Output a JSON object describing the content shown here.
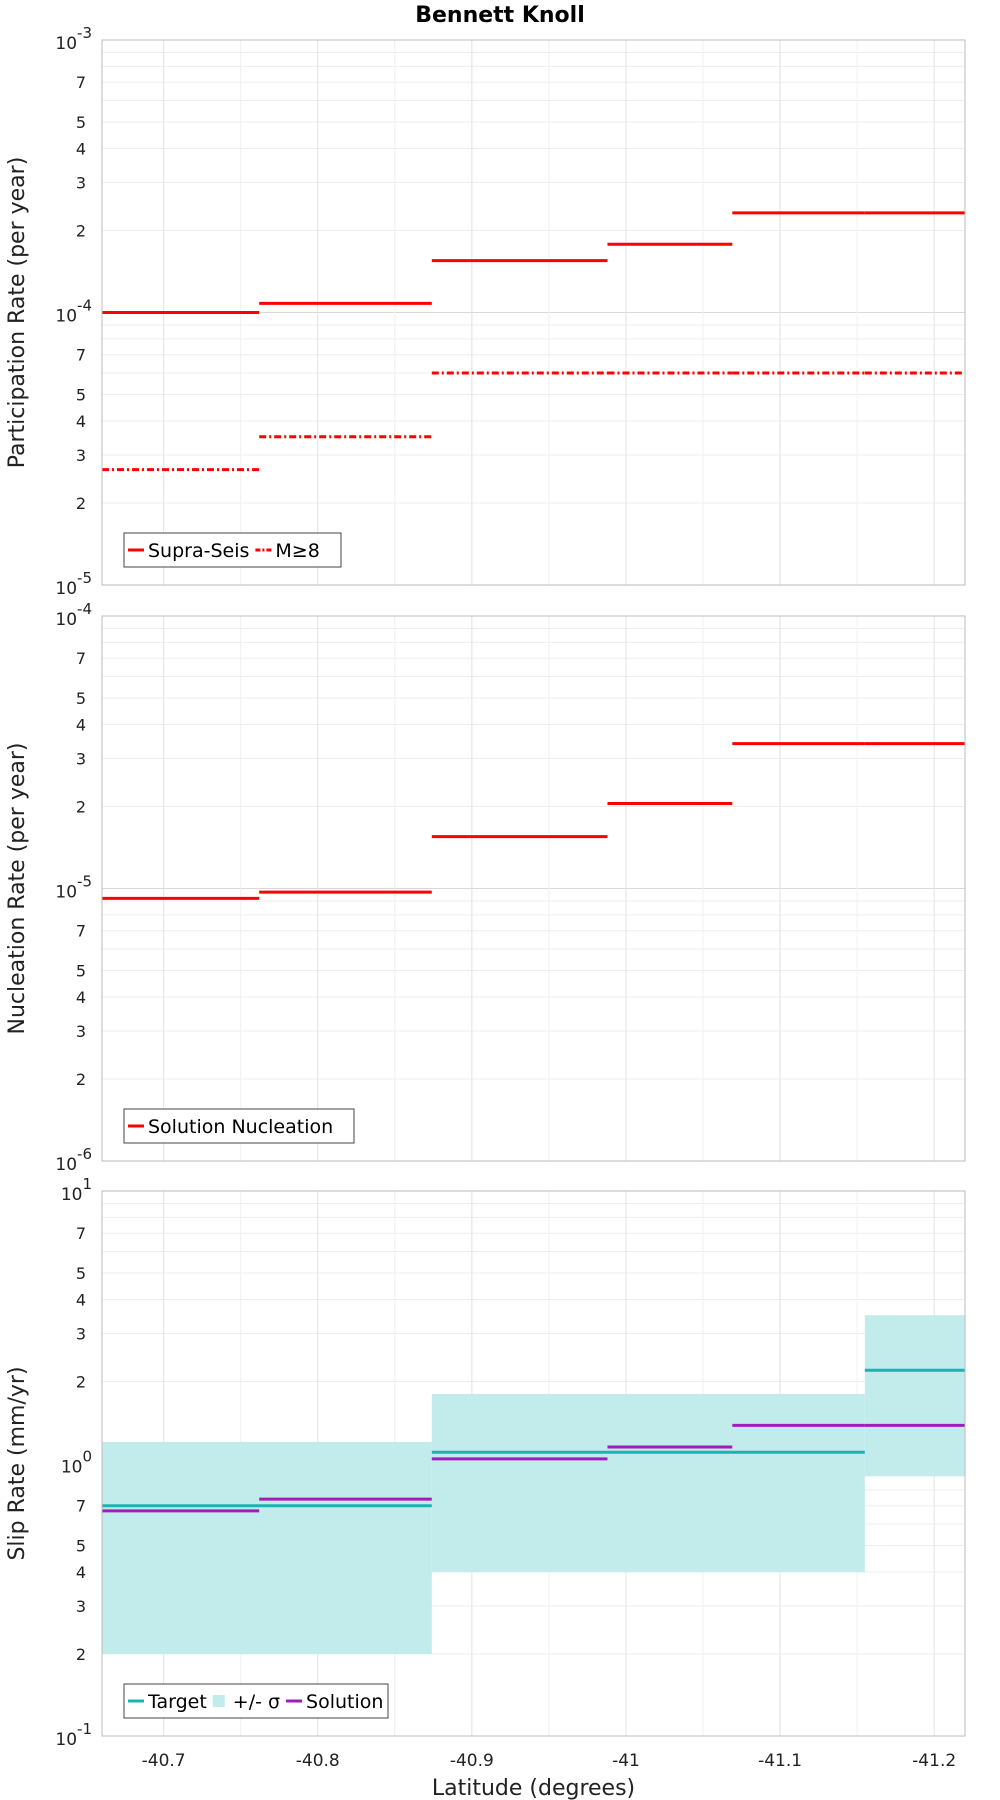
{
  "chart_data": [
    {
      "type": "line",
      "title": "Bennett Knoll",
      "ylabel": "Participation Rate (per year)",
      "xlabel": "",
      "xlim": [
        -40.66,
        -41.22
      ],
      "ylim": [
        1e-05,
        0.001
      ],
      "yscale": "log",
      "ytick_major": [
        {
          "base": "10",
          "exp": "-5"
        },
        {
          "base": "10",
          "exp": "-4"
        },
        {
          "base": "10",
          "exp": "-3"
        }
      ],
      "ytick_minor": [
        "2",
        "3",
        "4",
        "5",
        "7"
      ],
      "grid": true,
      "legend_position": "bottom-left",
      "series": [
        {
          "name": "Supra-Seis",
          "color": "#ff0000",
          "style": "solid",
          "segments": [
            {
              "x0": -40.66,
              "x1": -40.762,
              "y": 0.0001
            },
            {
              "x0": -40.762,
              "x1": -40.874,
              "y": 0.000108
            },
            {
              "x0": -40.874,
              "x1": -40.988,
              "y": 0.000155
            },
            {
              "x0": -40.988,
              "x1": -41.069,
              "y": 0.000178
            },
            {
              "x0": -41.069,
              "x1": -41.155,
              "y": 0.000232
            },
            {
              "x0": -41.155,
              "x1": -41.22,
              "y": 0.000232
            }
          ]
        },
        {
          "name": "M≥8",
          "color": "#ff0000",
          "style": "dashdot",
          "segments": [
            {
              "x0": -40.66,
              "x1": -40.762,
              "y": 2.65e-05
            },
            {
              "x0": -40.762,
              "x1": -40.874,
              "y": 3.5e-05
            },
            {
              "x0": -40.874,
              "x1": -40.988,
              "y": 6e-05
            },
            {
              "x0": -40.988,
              "x1": -41.069,
              "y": 6e-05
            },
            {
              "x0": -41.069,
              "x1": -41.155,
              "y": 6e-05
            },
            {
              "x0": -41.155,
              "x1": -41.22,
              "y": 6e-05
            }
          ]
        }
      ]
    },
    {
      "type": "line",
      "title": "",
      "ylabel": "Nucleation Rate (per year)",
      "xlabel": "",
      "xlim": [
        -40.66,
        -41.22
      ],
      "ylim": [
        1e-06,
        0.0001
      ],
      "yscale": "log",
      "ytick_major": [
        {
          "base": "10",
          "exp": "-6"
        },
        {
          "base": "10",
          "exp": "-5"
        },
        {
          "base": "10",
          "exp": "-4"
        }
      ],
      "ytick_minor": [
        "2",
        "3",
        "4",
        "5",
        "7"
      ],
      "grid": true,
      "legend_position": "bottom-left",
      "series": [
        {
          "name": "Solution Nucleation",
          "color": "#ff0000",
          "style": "solid",
          "segments": [
            {
              "x0": -40.66,
              "x1": -40.762,
              "y": 9.2e-06
            },
            {
              "x0": -40.762,
              "x1": -40.874,
              "y": 9.7e-06
            },
            {
              "x0": -40.874,
              "x1": -40.988,
              "y": 1.55e-05
            },
            {
              "x0": -40.988,
              "x1": -41.069,
              "y": 2.05e-05
            },
            {
              "x0": -41.069,
              "x1": -41.155,
              "y": 3.4e-05
            },
            {
              "x0": -41.155,
              "x1": -41.22,
              "y": 3.4e-05
            }
          ]
        }
      ]
    },
    {
      "type": "line",
      "title": "",
      "ylabel": "Slip Rate (mm/yr)",
      "xlabel": "Latitude (degrees)",
      "xlim": [
        -40.66,
        -41.22
      ],
      "ylim": [
        0.1,
        10
      ],
      "yscale": "log",
      "ytick_major": [
        {
          "base": "10",
          "exp": "-1"
        },
        {
          "base": "10",
          "exp": "0"
        },
        {
          "base": "10",
          "exp": "1"
        }
      ],
      "ytick_minor": [
        "2",
        "3",
        "4",
        "5",
        "7"
      ],
      "xticks": [
        "-40.7",
        "-40.8",
        "-40.9",
        "-41",
        "-41.1",
        "-41.2"
      ],
      "grid": true,
      "legend_position": "bottom-left",
      "bands": [
        {
          "name": "+/- σ",
          "color": "#c2ecec",
          "segments": [
            {
              "x0": -40.66,
              "x1": -40.874,
              "lo": 0.2,
              "hi": 1.2
            },
            {
              "x0": -40.874,
              "x1": -41.155,
              "lo": 0.4,
              "hi": 1.8
            },
            {
              "x0": -41.155,
              "x1": -41.22,
              "lo": 0.9,
              "hi": 3.5
            }
          ]
        }
      ],
      "series": [
        {
          "name": "Target",
          "color": "#1ab3b3",
          "style": "solid",
          "segments": [
            {
              "x0": -40.66,
              "x1": -40.874,
              "y": 0.7
            },
            {
              "x0": -40.874,
              "x1": -41.155,
              "y": 1.1
            },
            {
              "x0": -41.155,
              "x1": -41.22,
              "y": 2.2
            }
          ]
        },
        {
          "name": "Solution",
          "color": "#a01cbd",
          "style": "solid",
          "segments": [
            {
              "x0": -40.66,
              "x1": -40.762,
              "y": 0.67
            },
            {
              "x0": -40.762,
              "x1": -40.874,
              "y": 0.74
            },
            {
              "x0": -40.874,
              "x1": -40.988,
              "y": 1.04
            },
            {
              "x0": -40.988,
              "x1": -41.069,
              "y": 1.15
            },
            {
              "x0": -41.069,
              "x1": -41.155,
              "y": 1.38
            },
            {
              "x0": -41.155,
              "x1": -41.22,
              "y": 1.38
            }
          ]
        }
      ]
    }
  ]
}
